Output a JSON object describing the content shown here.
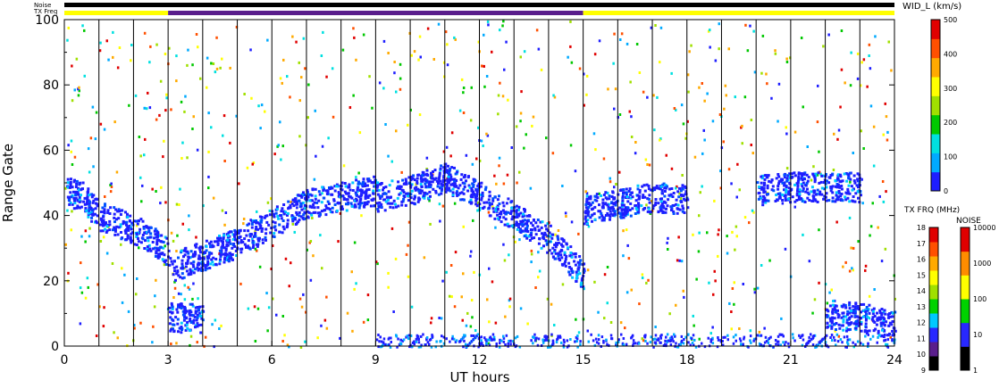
{
  "header": {
    "noise_label": "Noise",
    "freq_label": "TX Freq",
    "param_label": "WID_L (km/s)"
  },
  "chart_data": {
    "type": "heatmap",
    "xlabel": "UT hours",
    "ylabel": "Range Gate",
    "xlim": [
      0,
      24
    ],
    "ylim": [
      0,
      100
    ],
    "x_ticks": [
      "0",
      "3",
      "6",
      "9",
      "12",
      "15",
      "18",
      "21",
      "24"
    ],
    "y_ticks": [
      "0",
      "20",
      "40",
      "60",
      "80",
      "100"
    ],
    "scan_boundaries_ut": [
      1,
      2,
      3,
      4,
      5,
      6,
      7,
      8,
      9,
      10,
      11,
      12,
      13,
      14,
      15,
      16,
      17,
      18,
      19,
      20,
      21,
      22,
      23
    ],
    "freq_bar_segments": [
      {
        "start": 0,
        "end": 3,
        "color": "#ffff00"
      },
      {
        "start": 3,
        "end": 15,
        "color": "#5a1e8c"
      },
      {
        "start": 15,
        "end": 24,
        "color": "#ffff00"
      }
    ],
    "echo_bands": [
      {
        "x": [
          0.0,
          0.5,
          1.0,
          1.5,
          2.0,
          2.5,
          3.0
        ],
        "y": [
          48,
          46,
          40,
          38,
          36,
          33,
          29
        ]
      },
      {
        "x": [
          3.0,
          4.0,
          5.0,
          6.0,
          7.0,
          8.0,
          9.0
        ],
        "y": [
          24,
          28,
          32,
          38,
          44,
          46,
          48
        ]
      },
      {
        "x": [
          9.0,
          10.0,
          11.0,
          12.0,
          13.0,
          14.0,
          15.0
        ],
        "y": [
          46,
          48,
          52,
          46,
          40,
          33,
          22
        ]
      },
      {
        "x": [
          15.0,
          16.0,
          17.0,
          18.0
        ],
        "y": [
          42,
          44,
          46,
          45
        ]
      },
      {
        "x": [
          20.0,
          21.0,
          22.0,
          23.0
        ],
        "y": [
          48,
          49,
          49,
          49
        ]
      },
      {
        "x": [
          22.0,
          23.0,
          24.0
        ],
        "y": [
          10,
          9,
          7
        ]
      },
      {
        "x": [
          3.0,
          4.0
        ],
        "y": [
          9,
          9
        ]
      }
    ],
    "width_colorbar": {
      "title": "WID_L (km/s)",
      "ticks": [
        "0",
        "100",
        "200",
        "300",
        "400",
        "500"
      ],
      "range": [
        0,
        500
      ],
      "colors": [
        "#1e1eff",
        "#00aaff",
        "#00e0e0",
        "#00c800",
        "#a0e000",
        "#ffff00",
        "#ffaa00",
        "#ff5000",
        "#e00000"
      ]
    },
    "freq_colorbar": {
      "title": "TX FRQ (MHz)",
      "ticks": [
        "9",
        "10",
        "11",
        "12",
        "13",
        "14",
        "15",
        "16",
        "17",
        "18"
      ],
      "colors": [
        "#000000",
        "#5a1e8c",
        "#2828ff",
        "#00c8ff",
        "#00d200",
        "#a0e000",
        "#ffff00",
        "#ffaa00",
        "#ff5000",
        "#e00000"
      ]
    },
    "noise_colorbar": {
      "title": "NOISE",
      "ticks": [
        "1",
        "10",
        "100",
        "1000",
        "10000"
      ],
      "colors": [
        "#000000",
        "#2828ff",
        "#00d200",
        "#ffff00",
        "#ff8c00",
        "#e00000"
      ]
    }
  }
}
